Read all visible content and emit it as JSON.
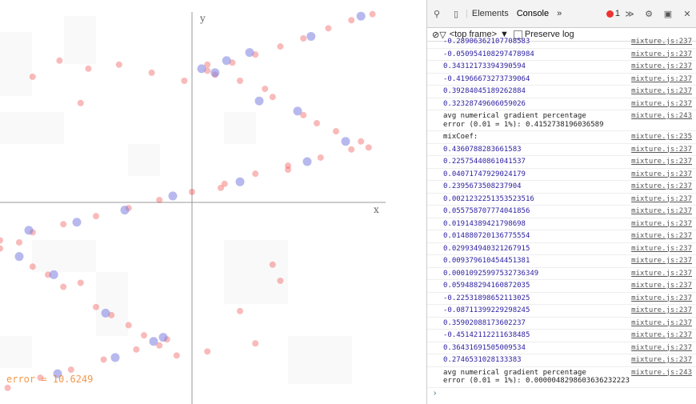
{
  "chart_data": {
    "type": "scatter",
    "x_label": "x",
    "y_label": "y",
    "annotation": "error = 10.6249",
    "xlim": [
      -1,
      1
    ],
    "ylim": [
      -1,
      1
    ],
    "series": [
      {
        "color": "#ee3a3a",
        "x": [
          -0.04,
          0.08,
          0.21,
          0.33,
          0.46,
          0.58,
          0.71,
          0.83,
          0.94,
          0.08,
          0.25,
          0.42,
          0.58,
          0.75,
          0.92,
          -1.0,
          -0.83,
          -0.67,
          -0.5,
          -0.33,
          -0.17,
          0.0,
          0.17,
          0.33,
          0.5,
          0.67,
          0.83,
          -1.0,
          -0.83,
          -0.67,
          -0.5,
          -0.33,
          -0.17,
          -0.96,
          -0.79,
          -0.63,
          -0.46,
          -0.29,
          -0.13,
          -0.83,
          -0.69,
          -0.54,
          -0.38,
          -0.21,
          -0.58,
          0.42,
          0.46,
          0.25,
          0.33,
          0.08,
          -0.9,
          -0.75,
          -0.58,
          -0.42,
          0.12,
          0.38,
          0.65,
          0.88,
          0.15,
          0.5,
          -0.25,
          -0.08
        ],
        "y": [
          0.6,
          0.65,
          0.69,
          0.73,
          0.77,
          0.81,
          0.86,
          0.9,
          0.93,
          0.68,
          0.6,
          0.52,
          0.43,
          0.35,
          0.27,
          -0.19,
          -0.15,
          -0.11,
          -0.07,
          -0.03,
          0.01,
          0.05,
          0.09,
          0.14,
          0.18,
          0.22,
          0.26,
          -0.23,
          -0.32,
          -0.42,
          -0.52,
          -0.61,
          -0.71,
          -0.92,
          -0.87,
          -0.83,
          -0.78,
          -0.73,
          -0.68,
          0.62,
          0.7,
          0.66,
          0.68,
          0.64,
          0.49,
          -0.31,
          -0.39,
          -0.54,
          -0.7,
          -0.74,
          -0.2,
          -0.36,
          -0.4,
          -0.56,
          0.63,
          0.56,
          0.39,
          0.3,
          0.07,
          0.16,
          -0.66,
          -0.76
        ]
      },
      {
        "color": "#7b7fe0",
        "x": [
          0.05,
          0.18,
          0.3,
          0.62,
          0.88,
          0.12,
          0.35,
          0.55,
          0.8,
          -0.85,
          -0.6,
          -0.35,
          -0.1,
          0.25,
          0.6,
          -0.9,
          -0.72,
          -0.45,
          -0.2,
          -0.7,
          -0.4,
          -0.15
        ],
        "y": [
          0.66,
          0.7,
          0.74,
          0.82,
          0.92,
          0.64,
          0.5,
          0.45,
          0.3,
          -0.14,
          -0.1,
          -0.04,
          0.03,
          0.1,
          0.2,
          -0.27,
          -0.36,
          -0.55,
          -0.69,
          -0.85,
          -0.77,
          -0.67
        ]
      }
    ]
  },
  "devtools": {
    "tabs": [
      "Elements",
      "Console",
      "»"
    ],
    "error_count": "1",
    "filter": {
      "context": "<top frame>",
      "preserve_log": "Preserve log"
    },
    "entries": [
      {
        "text": "-0.28906362107708583",
        "source": "mixture.js:237"
      },
      {
        "text": "-0.050954108297478984",
        "source": "mixture.js:237"
      },
      {
        "text": "0.34312173394390594",
        "source": "mixture.js:237"
      },
      {
        "text": "-0.41966673273739064",
        "source": "mixture.js:237"
      },
      {
        "text": "0.39284045189262884",
        "source": "mixture.js:237"
      },
      {
        "text": "0.32328749606059026",
        "source": "mixture.js:237"
      },
      {
        "text": "avg numerical gradient percentage\nerror (0.01 = 1%): 0.4152738196036589",
        "source": "mixture.js:243"
      },
      {
        "text": "mixCoef:",
        "source": "mixture.js:235"
      },
      {
        "text": "0.4360788283661583",
        "source": "mixture.js:237"
      },
      {
        "text": "0.22575440861041537",
        "source": "mixture.js:237"
      },
      {
        "text": "0.04071747929024179",
        "source": "mixture.js:237"
      },
      {
        "text": "0.2395673508237904",
        "source": "mixture.js:237"
      },
      {
        "text": "0.0021232251353523516",
        "source": "mixture.js:237"
      },
      {
        "text": "0.055758707774041856",
        "source": "mixture.js:237"
      },
      {
        "text": "0.01914389421798698",
        "source": "mixture.js:237"
      },
      {
        "text": "0.014880720136775554",
        "source": "mixture.js:237"
      },
      {
        "text": "0.029934940321267915",
        "source": "mixture.js:237"
      },
      {
        "text": "0.009379610454451381",
        "source": "mixture.js:237"
      },
      {
        "text": "0.00010925997532736349",
        "source": "mixture.js:237"
      },
      {
        "text": "0.059488294160872035",
        "source": "mixture.js:237"
      },
      {
        "text": "-0.22531898652113025",
        "source": "mixture.js:237"
      },
      {
        "text": "-0.08711399229298245",
        "source": "mixture.js:237"
      },
      {
        "text": "0.35902088173602237",
        "source": "mixture.js:237"
      },
      {
        "text": "-0.45142112211638485",
        "source": "mixture.js:237"
      },
      {
        "text": "0.36431691505009534",
        "source": "mixture.js:237"
      },
      {
        "text": "0.2746531028133383",
        "source": "mixture.js:237"
      },
      {
        "text": "avg numerical gradient percentage\nerror (0.01 = 1%): 0.0000048298603636232223",
        "source": "mixture.js:243"
      }
    ]
  }
}
